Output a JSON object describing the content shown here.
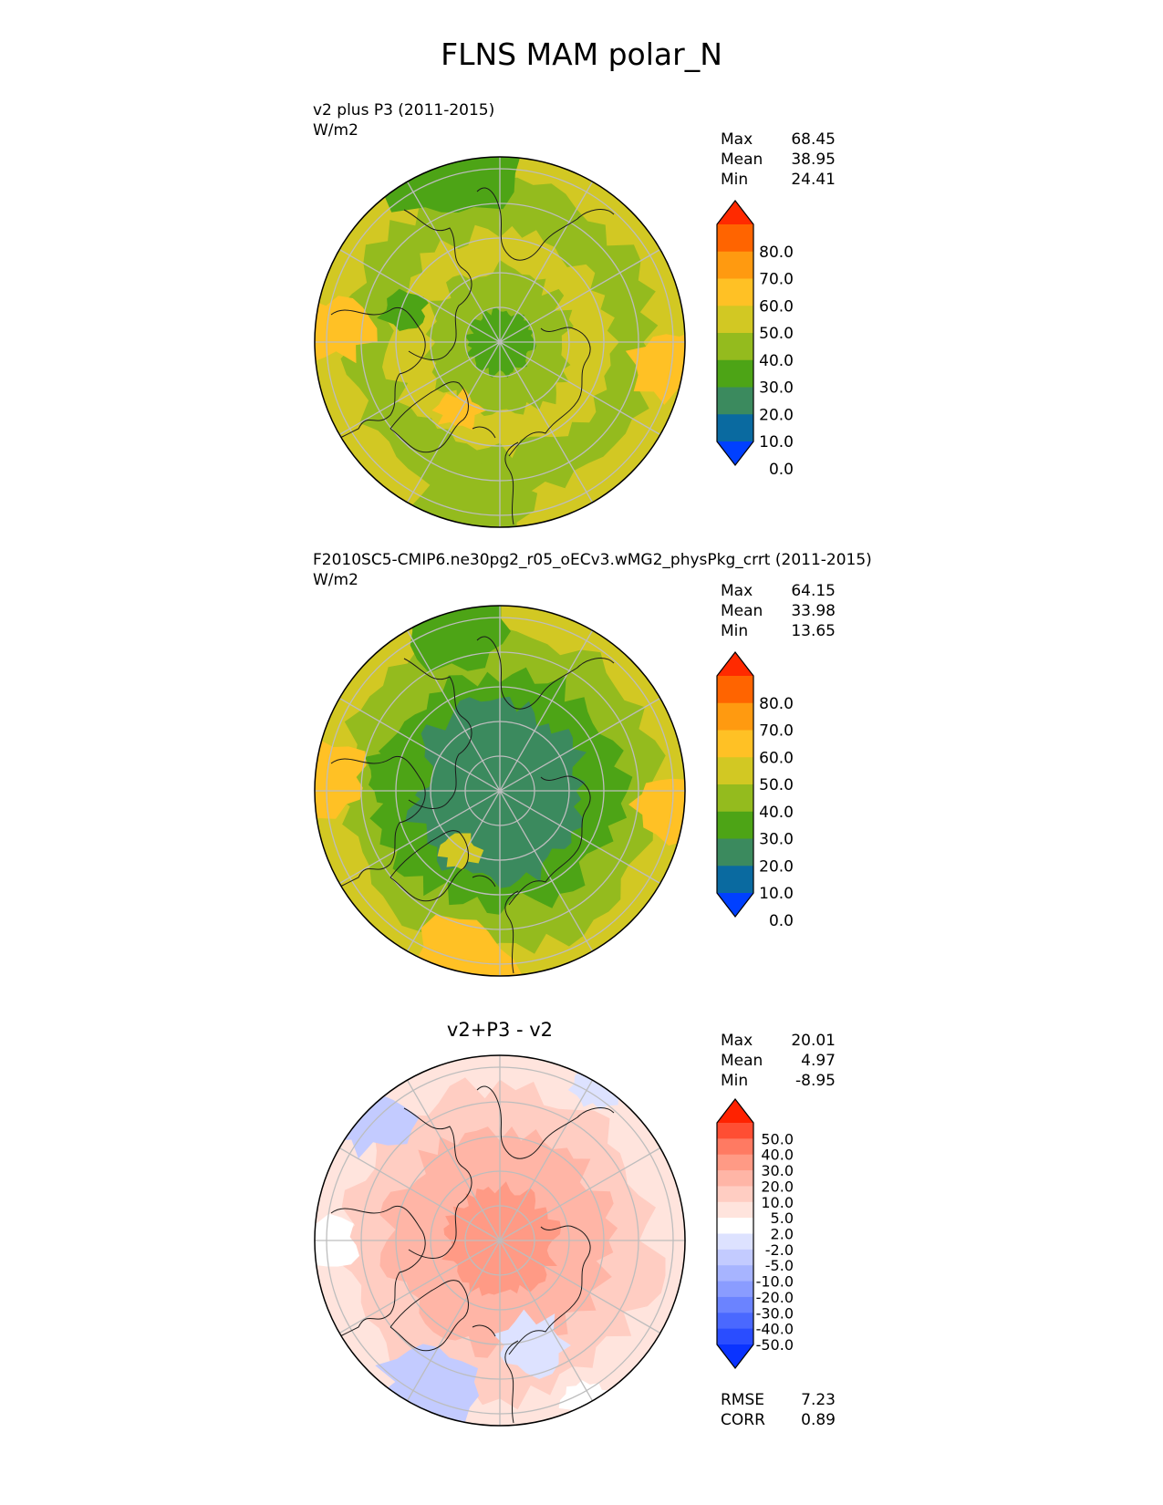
{
  "page_title": "FLNS MAM polar_N",
  "panels": [
    {
      "label_line1": "v2 plus P3 (2011-2015)",
      "label_line2": "W/m2",
      "stats": {
        "max_label": "Max",
        "max": "68.45",
        "mean_label": "Mean",
        "mean": "38.95",
        "min_label": "Min",
        "min": "24.41"
      }
    },
    {
      "label_line1": "F2010SC5-CMIP6.ne30pg2_r05_oECv3.wMG2_physPkg_crrt (2011-2015)",
      "label_line2": "W/m2",
      "stats": {
        "max_label": "Max",
        "max": "64.15",
        "mean_label": "Mean",
        "mean": "33.98",
        "min_label": "Min",
        "min": "13.65"
      }
    },
    {
      "title": "v2+P3 - v2",
      "stats": {
        "max_label": "Max",
        "max": "20.01",
        "mean_label": "Mean",
        "mean": "4.97",
        "min_label": "Min",
        "min": "-8.95"
      },
      "metrics": {
        "rmse_label": "RMSE",
        "rmse": "7.23",
        "corr_label": "CORR",
        "corr": "0.89"
      }
    }
  ],
  "chart_data": [
    {
      "type": "heatmap",
      "projection": "north-polar-stereographic",
      "title": "v2 plus P3 (2011-2015)",
      "units": "W/m2",
      "colorbar": {
        "ticks": [
          "80.0",
          "70.0",
          "60.0",
          "50.0",
          "40.0",
          "30.0",
          "20.0",
          "10.0",
          "0.0"
        ],
        "colors": [
          "#ff2a00",
          "#ff6400",
          "#ff9a10",
          "#ffc125",
          "#d2c823",
          "#94bb1e",
          "#4da416",
          "#3b8a5e",
          "#0a6aa0",
          "#0040ff"
        ],
        "extend": "both"
      },
      "max": 68.45,
      "mean": 38.95,
      "min": 24.41
    },
    {
      "type": "heatmap",
      "projection": "north-polar-stereographic",
      "title": "F2010SC5-CMIP6.ne30pg2_r05_oECv3.wMG2_physPkg_crrt (2011-2015)",
      "units": "W/m2",
      "colorbar": {
        "ticks": [
          "80.0",
          "70.0",
          "60.0",
          "50.0",
          "40.0",
          "30.0",
          "20.0",
          "10.0",
          "0.0"
        ],
        "colors": [
          "#ff2a00",
          "#ff6400",
          "#ff9a10",
          "#ffc125",
          "#d2c823",
          "#94bb1e",
          "#4da416",
          "#3b8a5e",
          "#0a6aa0",
          "#0040ff"
        ],
        "extend": "both"
      },
      "max": 64.15,
      "mean": 33.98,
      "min": 13.65
    },
    {
      "type": "heatmap",
      "projection": "north-polar-stereographic",
      "title": "v2+P3 - v2",
      "colorbar": {
        "ticks": [
          "50.0",
          "40.0",
          "30.0",
          "20.0",
          "10.0",
          "5.0",
          "2.0",
          "-2.0",
          "-5.0",
          "-10.0",
          "-20.0",
          "-30.0",
          "-40.0",
          "-50.0"
        ],
        "colors": [
          "#ff2200",
          "#ff4e33",
          "#ff7a62",
          "#ff9a85",
          "#ffb5a6",
          "#ffcdc2",
          "#ffe4dd",
          "#ffffff",
          "#dde2ff",
          "#c3cbff",
          "#a7b4ff",
          "#8a9cff",
          "#6b83ff",
          "#4a68ff",
          "#2a4dff",
          "#0a33ff"
        ],
        "extend": "both"
      },
      "max": 20.01,
      "mean": 4.97,
      "min": -8.95,
      "rmse": 7.23,
      "corr": 0.89
    }
  ]
}
